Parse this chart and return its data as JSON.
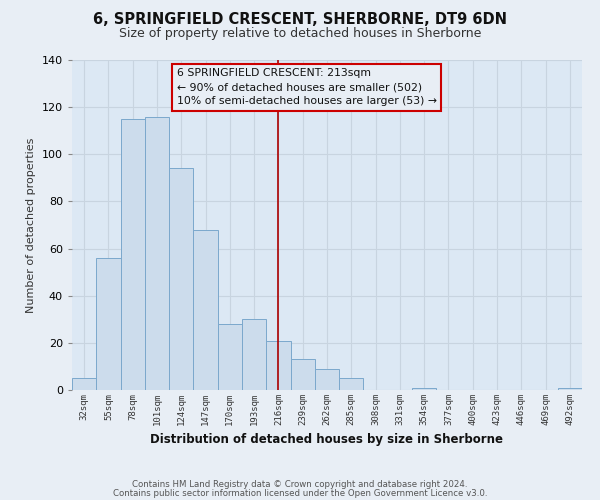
{
  "title": "6, SPRINGFIELD CRESCENT, SHERBORNE, DT9 6DN",
  "subtitle": "Size of property relative to detached houses in Sherborne",
  "xlabel": "Distribution of detached houses by size in Sherborne",
  "ylabel": "Number of detached properties",
  "bar_labels": [
    "32sqm",
    "55sqm",
    "78sqm",
    "101sqm",
    "124sqm",
    "147sqm",
    "170sqm",
    "193sqm",
    "216sqm",
    "239sqm",
    "262sqm",
    "285sqm",
    "308sqm",
    "331sqm",
    "354sqm",
    "377sqm",
    "400sqm",
    "423sqm",
    "446sqm",
    "469sqm",
    "492sqm"
  ],
  "bar_values": [
    5,
    56,
    115,
    116,
    94,
    68,
    28,
    30,
    21,
    13,
    9,
    5,
    0,
    0,
    1,
    0,
    0,
    0,
    0,
    0,
    1
  ],
  "bar_color": "#ccdcec",
  "bar_edge_color": "#7ba8cc",
  "vline_index": 8,
  "vline_color": "#aa0000",
  "ylim": [
    0,
    140
  ],
  "yticks": [
    0,
    20,
    40,
    60,
    80,
    100,
    120,
    140
  ],
  "annotation_title": "6 SPRINGFIELD CRESCENT: 213sqm",
  "annotation_line1": "← 90% of detached houses are smaller (502)",
  "annotation_line2": "10% of semi-detached houses are larger (53) →",
  "footnote1": "Contains HM Land Registry data © Crown copyright and database right 2024.",
  "footnote2": "Contains public sector information licensed under the Open Government Licence v3.0.",
  "background_color": "#e8eef5",
  "grid_color": "#c8d4e0",
  "plot_bg_color": "#dce8f4"
}
